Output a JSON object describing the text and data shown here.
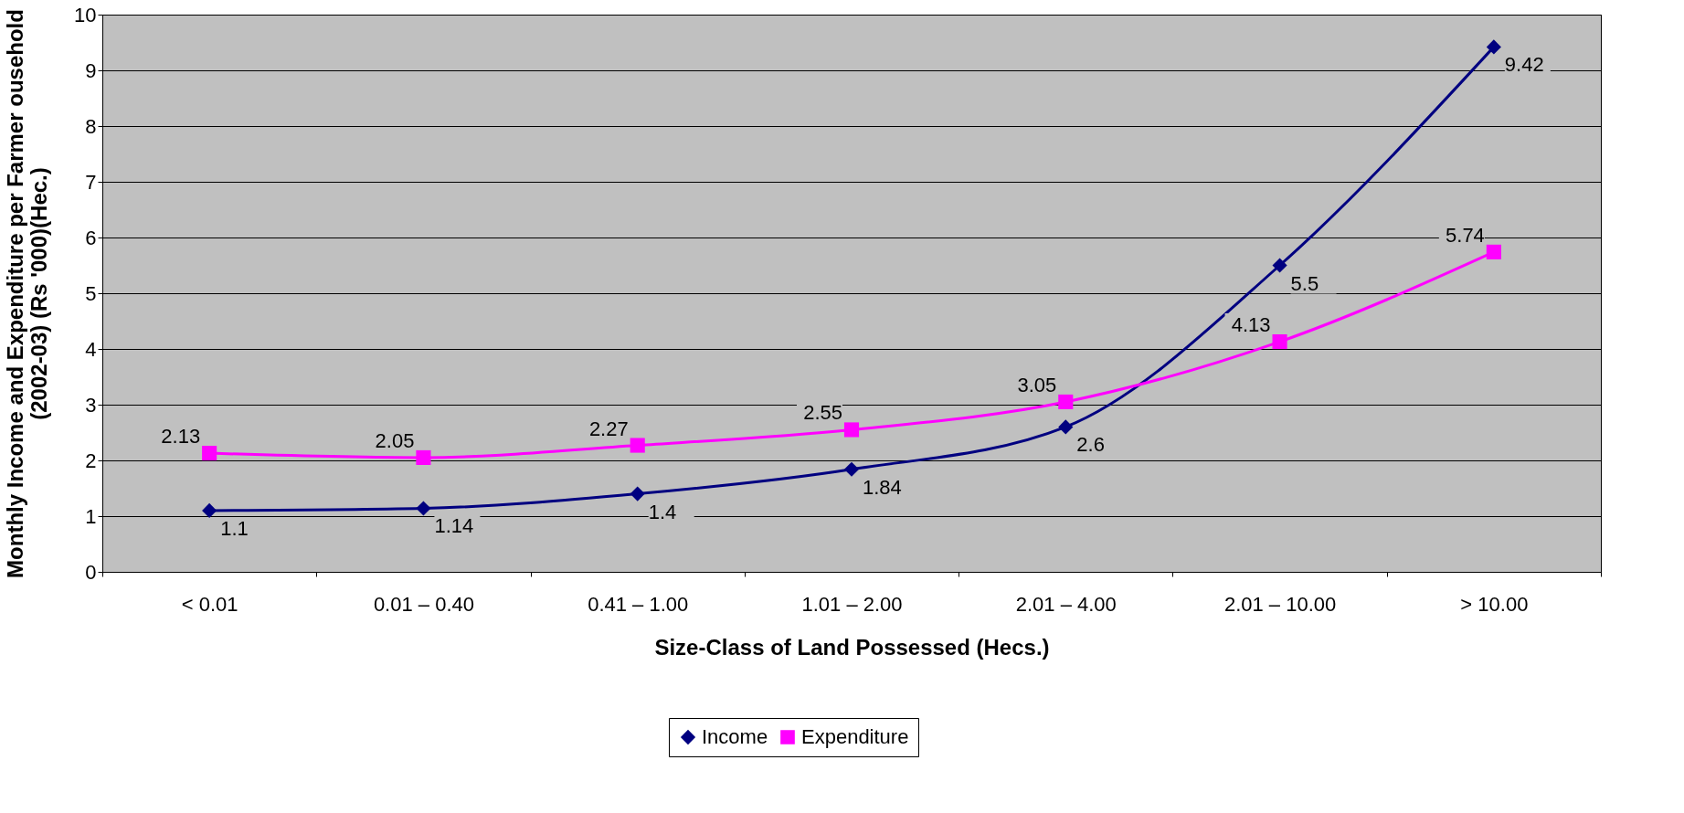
{
  "chart_data": {
    "type": "line",
    "xlabel": "Size-Class of Land Possessed (Hecs.)",
    "ylabel": "Monthly Income and Expenditure per Farmer ousehold\n(2002-03) (Rs '000)(Hec.)",
    "categories": [
      "< 0.01",
      "0.01 – 0.40",
      "0.41 – 1.00",
      "1.01 – 2.00",
      "2.01 – 4.00",
      "2.01 – 10.00",
      "> 10.00"
    ],
    "series": [
      {
        "name": "Income",
        "color": "#000080",
        "marker": "diamond",
        "values": [
          1.1,
          1.14,
          1.4,
          1.84,
          2.6,
          5.5,
          9.42
        ]
      },
      {
        "name": "Expenditure",
        "color": "#ff00ff",
        "marker": "square",
        "values": [
          2.13,
          2.05,
          2.27,
          2.55,
          3.05,
          4.13,
          5.74
        ]
      }
    ],
    "ylim": [
      0,
      10
    ],
    "yticks": [
      0,
      1,
      2,
      3,
      4,
      5,
      6,
      7,
      8,
      9,
      10
    ],
    "grid": "y",
    "legend": "bottom",
    "data_labels": true,
    "line_style": "solid"
  }
}
